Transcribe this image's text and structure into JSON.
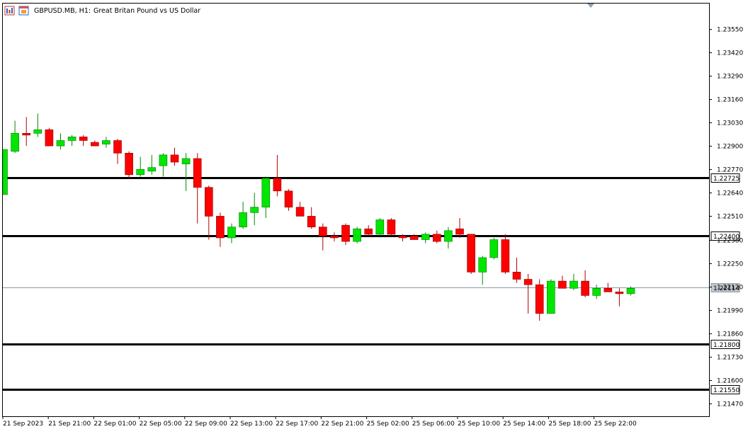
{
  "header": {
    "symbol_text": "GBPUSD.MB, H1:",
    "description": "Great Britan Pound vs US Dollar",
    "chart-icon": "bar-chart-icon",
    "window-icon": "window-icon"
  },
  "chart_data": {
    "type": "candlestick",
    "title": "GBPUSD.MB, H1:  Great Britan Pound vs US Dollar",
    "ylim": [
      1.214,
      1.2369
    ],
    "y_ticks": [
      "1.23550",
      "1.23420",
      "1.23290",
      "1.23160",
      "1.23030",
      "1.22900",
      "1.22770",
      "1.22640",
      "1.22510",
      "1.22380",
      "1.22250",
      "1.22120",
      "1.21990",
      "1.21860",
      "1.21730",
      "1.21600",
      "1.21470"
    ],
    "x_tick_labels": [
      "21 Sep 2023",
      "21 Sep 21:00",
      "22 Sep 01:00",
      "22 Sep 05:00",
      "22 Sep 09:00",
      "22 Sep 13:00",
      "22 Sep 17:00",
      "22 Sep 21:00",
      "25 Sep 02:00",
      "25 Sep 06:00",
      "25 Sep 10:00",
      "25 Sep 14:00",
      "25 Sep 18:00",
      "25 Sep 22:00"
    ],
    "current_price": "1.22114",
    "horizontal_levels": [
      {
        "price": 1.22725,
        "label": "1.22725"
      },
      {
        "price": 1.224,
        "label": "1.22400"
      },
      {
        "price": 1.218,
        "label": "1.21800"
      },
      {
        "price": 1.2155,
        "label": "1.21550"
      }
    ],
    "bull_color": "#00e600",
    "bear_color": "#ff0000",
    "candles": [
      {
        "o": 1.2263,
        "h": 1.2288,
        "l": 1.2263,
        "c": 1.2288
      },
      {
        "o": 1.2287,
        "h": 1.2304,
        "l": 1.2286,
        "c": 1.2297
      },
      {
        "o": 1.2297,
        "h": 1.2306,
        "l": 1.229,
        "c": 1.2296
      },
      {
        "o": 1.2297,
        "h": 1.2308,
        "l": 1.2295,
        "c": 1.2299
      },
      {
        "o": 1.2299,
        "h": 1.23,
        "l": 1.229,
        "c": 1.229
      },
      {
        "o": 1.229,
        "h": 1.2297,
        "l": 1.2288,
        "c": 1.2293
      },
      {
        "o": 1.2293,
        "h": 1.2296,
        "l": 1.229,
        "c": 1.2295
      },
      {
        "o": 1.2295,
        "h": 1.2296,
        "l": 1.229,
        "c": 1.2293
      },
      {
        "o": 1.2292,
        "h": 1.2293,
        "l": 1.229,
        "c": 1.229
      },
      {
        "o": 1.2291,
        "h": 1.2295,
        "l": 1.2289,
        "c": 1.2293
      },
      {
        "o": 1.2293,
        "h": 1.2294,
        "l": 1.228,
        "c": 1.2286
      },
      {
        "o": 1.2286,
        "h": 1.2287,
        "l": 1.2272,
        "c": 1.2274
      },
      {
        "o": 1.2274,
        "h": 1.2284,
        "l": 1.2273,
        "c": 1.2277
      },
      {
        "o": 1.2276,
        "h": 1.2285,
        "l": 1.2274,
        "c": 1.2278
      },
      {
        "o": 1.2279,
        "h": 1.2286,
        "l": 1.2273,
        "c": 1.2285
      },
      {
        "o": 1.2285,
        "h": 1.2289,
        "l": 1.2279,
        "c": 1.2281
      },
      {
        "o": 1.228,
        "h": 1.2286,
        "l": 1.2265,
        "c": 1.2283
      },
      {
        "o": 1.2283,
        "h": 1.2286,
        "l": 1.2247,
        "c": 1.2267
      },
      {
        "o": 1.2267,
        "h": 1.2268,
        "l": 1.2238,
        "c": 1.2251
      },
      {
        "o": 1.2251,
        "h": 1.2253,
        "l": 1.2234,
        "c": 1.2239
      },
      {
        "o": 1.2239,
        "h": 1.2247,
        "l": 1.2236,
        "c": 1.2245
      },
      {
        "o": 1.2245,
        "h": 1.2259,
        "l": 1.2244,
        "c": 1.2253
      },
      {
        "o": 1.2253,
        "h": 1.2264,
        "l": 1.2246,
        "c": 1.2256
      },
      {
        "o": 1.2256,
        "h": 1.2273,
        "l": 1.225,
        "c": 1.2272
      },
      {
        "o": 1.2272,
        "h": 1.2285,
        "l": 1.2262,
        "c": 1.2265
      },
      {
        "o": 1.2265,
        "h": 1.2266,
        "l": 1.2254,
        "c": 1.2256
      },
      {
        "o": 1.2256,
        "h": 1.2259,
        "l": 1.2251,
        "c": 1.2251
      },
      {
        "o": 1.2251,
        "h": 1.2256,
        "l": 1.2244,
        "c": 1.2245
      },
      {
        "o": 1.2245,
        "h": 1.2247,
        "l": 1.2232,
        "c": 1.224
      },
      {
        "o": 1.224,
        "h": 1.2242,
        "l": 1.2237,
        "c": 1.2239
      },
      {
        "o": 1.2246,
        "h": 1.2247,
        "l": 1.2235,
        "c": 1.2237
      },
      {
        "o": 1.2237,
        "h": 1.2245,
        "l": 1.2236,
        "c": 1.2244
      },
      {
        "o": 1.2244,
        "h": 1.2246,
        "l": 1.224,
        "c": 1.2241
      },
      {
        "o": 1.2241,
        "h": 1.225,
        "l": 1.224,
        "c": 1.2249
      },
      {
        "o": 1.2249,
        "h": 1.225,
        "l": 1.224,
        "c": 1.2241
      },
      {
        "o": 1.224,
        "h": 1.2241,
        "l": 1.2237,
        "c": 1.2239
      },
      {
        "o": 1.224,
        "h": 1.2241,
        "l": 1.2238,
        "c": 1.2238
      },
      {
        "o": 1.2238,
        "h": 1.2242,
        "l": 1.2236,
        "c": 1.2241
      },
      {
        "o": 1.2241,
        "h": 1.2243,
        "l": 1.2236,
        "c": 1.2237
      },
      {
        "o": 1.2237,
        "h": 1.2245,
        "l": 1.2233,
        "c": 1.2243
      },
      {
        "o": 1.2244,
        "h": 1.225,
        "l": 1.2239,
        "c": 1.2241
      },
      {
        "o": 1.2241,
        "h": 1.2241,
        "l": 1.2219,
        "c": 1.222
      },
      {
        "o": 1.222,
        "h": 1.2229,
        "l": 1.2213,
        "c": 1.2228
      },
      {
        "o": 1.2228,
        "h": 1.2239,
        "l": 1.2227,
        "c": 1.2238
      },
      {
        "o": 1.2238,
        "h": 1.2241,
        "l": 1.2219,
        "c": 1.222
      },
      {
        "o": 1.222,
        "h": 1.2228,
        "l": 1.2214,
        "c": 1.2216
      },
      {
        "o": 1.2216,
        "h": 1.2219,
        "l": 1.2197,
        "c": 1.2213
      },
      {
        "o": 1.2213,
        "h": 1.2216,
        "l": 1.2193,
        "c": 1.2197
      },
      {
        "o": 1.2197,
        "h": 1.2216,
        "l": 1.2197,
        "c": 1.2215
      },
      {
        "o": 1.2215,
        "h": 1.2218,
        "l": 1.2211,
        "c": 1.2211
      },
      {
        "o": 1.2211,
        "h": 1.2219,
        "l": 1.221,
        "c": 1.2215
      },
      {
        "o": 1.2215,
        "h": 1.2221,
        "l": 1.2206,
        "c": 1.2207
      },
      {
        "o": 1.2207,
        "h": 1.2213,
        "l": 1.2205,
        "c": 1.2211
      },
      {
        "o": 1.2211,
        "h": 1.2214,
        "l": 1.2209,
        "c": 1.2209
      },
      {
        "o": 1.2209,
        "h": 1.2211,
        "l": 1.2201,
        "c": 1.2208
      },
      {
        "o": 1.2208,
        "h": 1.2212,
        "l": 1.2207,
        "c": 1.2211
      }
    ]
  }
}
